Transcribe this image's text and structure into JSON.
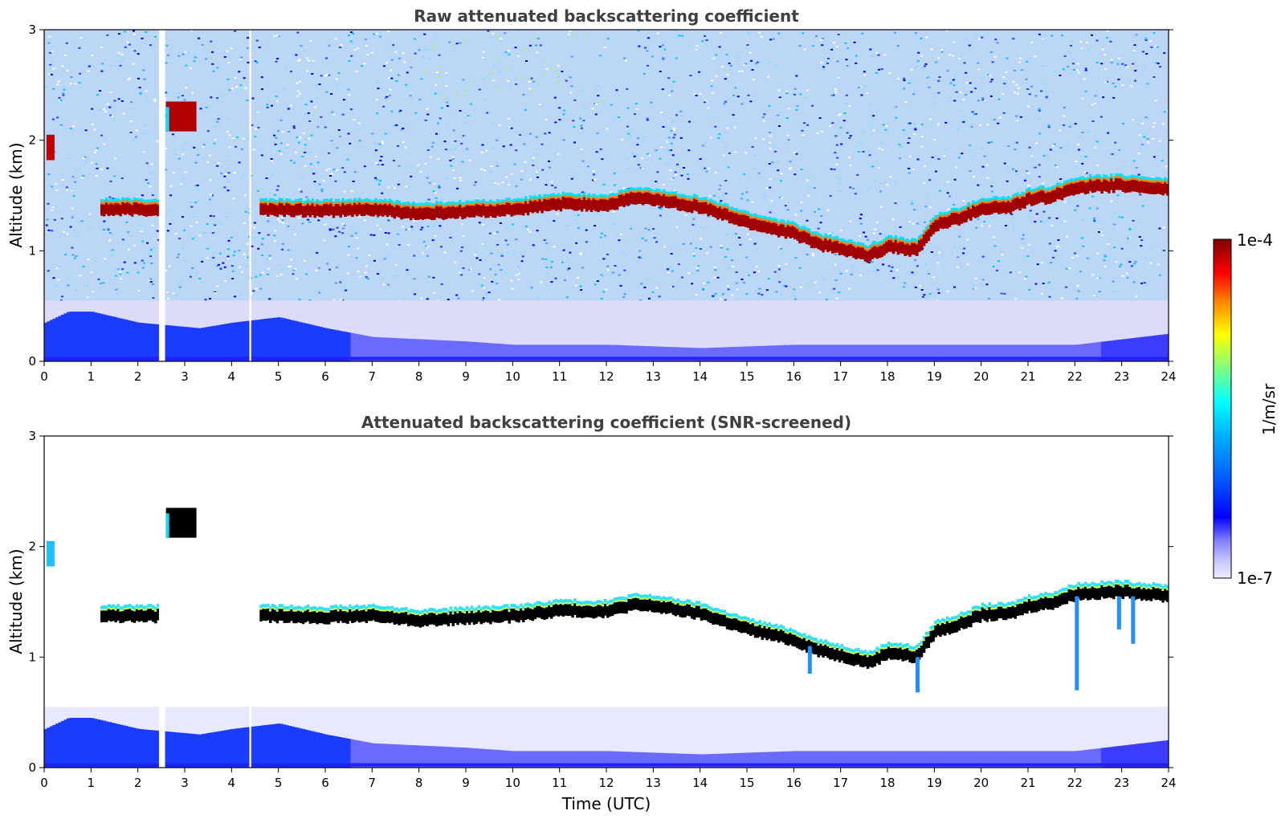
{
  "chart_data": [
    {
      "type": "heatmap",
      "title": "Raw attenuated backscattering coefficient",
      "xlabel": "",
      "ylabel": "Altitude (km)",
      "xlim": [
        0,
        24
      ],
      "ylim": [
        0,
        3
      ],
      "x_ticks": [
        "0",
        "1",
        "2",
        "3",
        "4",
        "5",
        "6",
        "7",
        "8",
        "9",
        "10",
        "11",
        "12",
        "13",
        "14",
        "15",
        "16",
        "17",
        "18",
        "19",
        "20",
        "21",
        "22",
        "23",
        "24"
      ],
      "y_ticks": [
        "0",
        "1",
        "2",
        "3"
      ],
      "cloud_layer_km": [
        [
          1.2,
          1.4
        ],
        [
          2.0,
          1.4
        ],
        [
          4.6,
          1.4
        ],
        [
          6.0,
          1.39
        ],
        [
          7.0,
          1.4
        ],
        [
          8.0,
          1.36
        ],
        [
          9.0,
          1.38
        ],
        [
          10.0,
          1.4
        ],
        [
          11.0,
          1.45
        ],
        [
          12.0,
          1.44
        ],
        [
          12.5,
          1.5
        ],
        [
          13.0,
          1.49
        ],
        [
          14.0,
          1.42
        ],
        [
          15.0,
          1.28
        ],
        [
          16.0,
          1.18
        ],
        [
          16.5,
          1.09
        ],
        [
          17.0,
          1.04
        ],
        [
          17.6,
          0.98
        ],
        [
          18.0,
          1.07
        ],
        [
          18.6,
          1.03
        ],
        [
          19.0,
          1.26
        ],
        [
          19.5,
          1.32
        ],
        [
          20.0,
          1.41
        ],
        [
          20.6,
          1.42
        ],
        [
          21.0,
          1.49
        ],
        [
          21.5,
          1.52
        ],
        [
          22.0,
          1.6
        ],
        [
          23.0,
          1.62
        ],
        [
          24.0,
          1.58
        ]
      ],
      "boundary_layer_top_km": [
        [
          0.0,
          0.35
        ],
        [
          0.5,
          0.45
        ],
        [
          1.0,
          0.45
        ],
        [
          1.5,
          0.4
        ],
        [
          2.0,
          0.35
        ],
        [
          3.3,
          0.3
        ],
        [
          4.0,
          0.35
        ],
        [
          5.0,
          0.4
        ],
        [
          6.0,
          0.3
        ],
        [
          7.0,
          0.22
        ],
        [
          8.0,
          0.2
        ],
        [
          9.0,
          0.18
        ],
        [
          10.0,
          0.15
        ],
        [
          12.0,
          0.15
        ],
        [
          14.0,
          0.12
        ],
        [
          16.0,
          0.15
        ],
        [
          18.0,
          0.15
        ],
        [
          20.0,
          0.15
        ],
        [
          22.0,
          0.15
        ],
        [
          23.0,
          0.2
        ],
        [
          24.0,
          0.25
        ]
      ],
      "data_gaps_utc": [
        [
          2.45,
          2.58
        ],
        [
          4.38,
          4.42
        ]
      ]
    },
    {
      "type": "heatmap",
      "title": "Attenuated backscattering coefficient (SNR-screened)",
      "xlabel": "Time (UTC)",
      "ylabel": "Altitude (km)",
      "xlim": [
        0,
        24
      ],
      "ylim": [
        0,
        3
      ],
      "x_ticks": [
        "0",
        "1",
        "2",
        "3",
        "4",
        "5",
        "6",
        "7",
        "8",
        "9",
        "10",
        "11",
        "12",
        "13",
        "14",
        "15",
        "16",
        "17",
        "18",
        "19",
        "20",
        "21",
        "22",
        "23",
        "24"
      ],
      "y_ticks": [
        "0",
        "1",
        "2",
        "3"
      ]
    }
  ],
  "colorbar": {
    "label": "1/m/sr",
    "max_label": "1e-4",
    "min_label": "1e-7",
    "colors": [
      "#ececff",
      "#c8c8ff",
      "#a0a0ff",
      "#7878ff",
      "#3c3cff",
      "#0000ff",
      "#0040ff",
      "#0080ff",
      "#00c0ff",
      "#00ffff",
      "#40ffc0",
      "#80ff80",
      "#c0ff40",
      "#ffff00",
      "#ffc000",
      "#ff8000",
      "#ff4000",
      "#ff0000",
      "#c00000",
      "#800000"
    ]
  }
}
